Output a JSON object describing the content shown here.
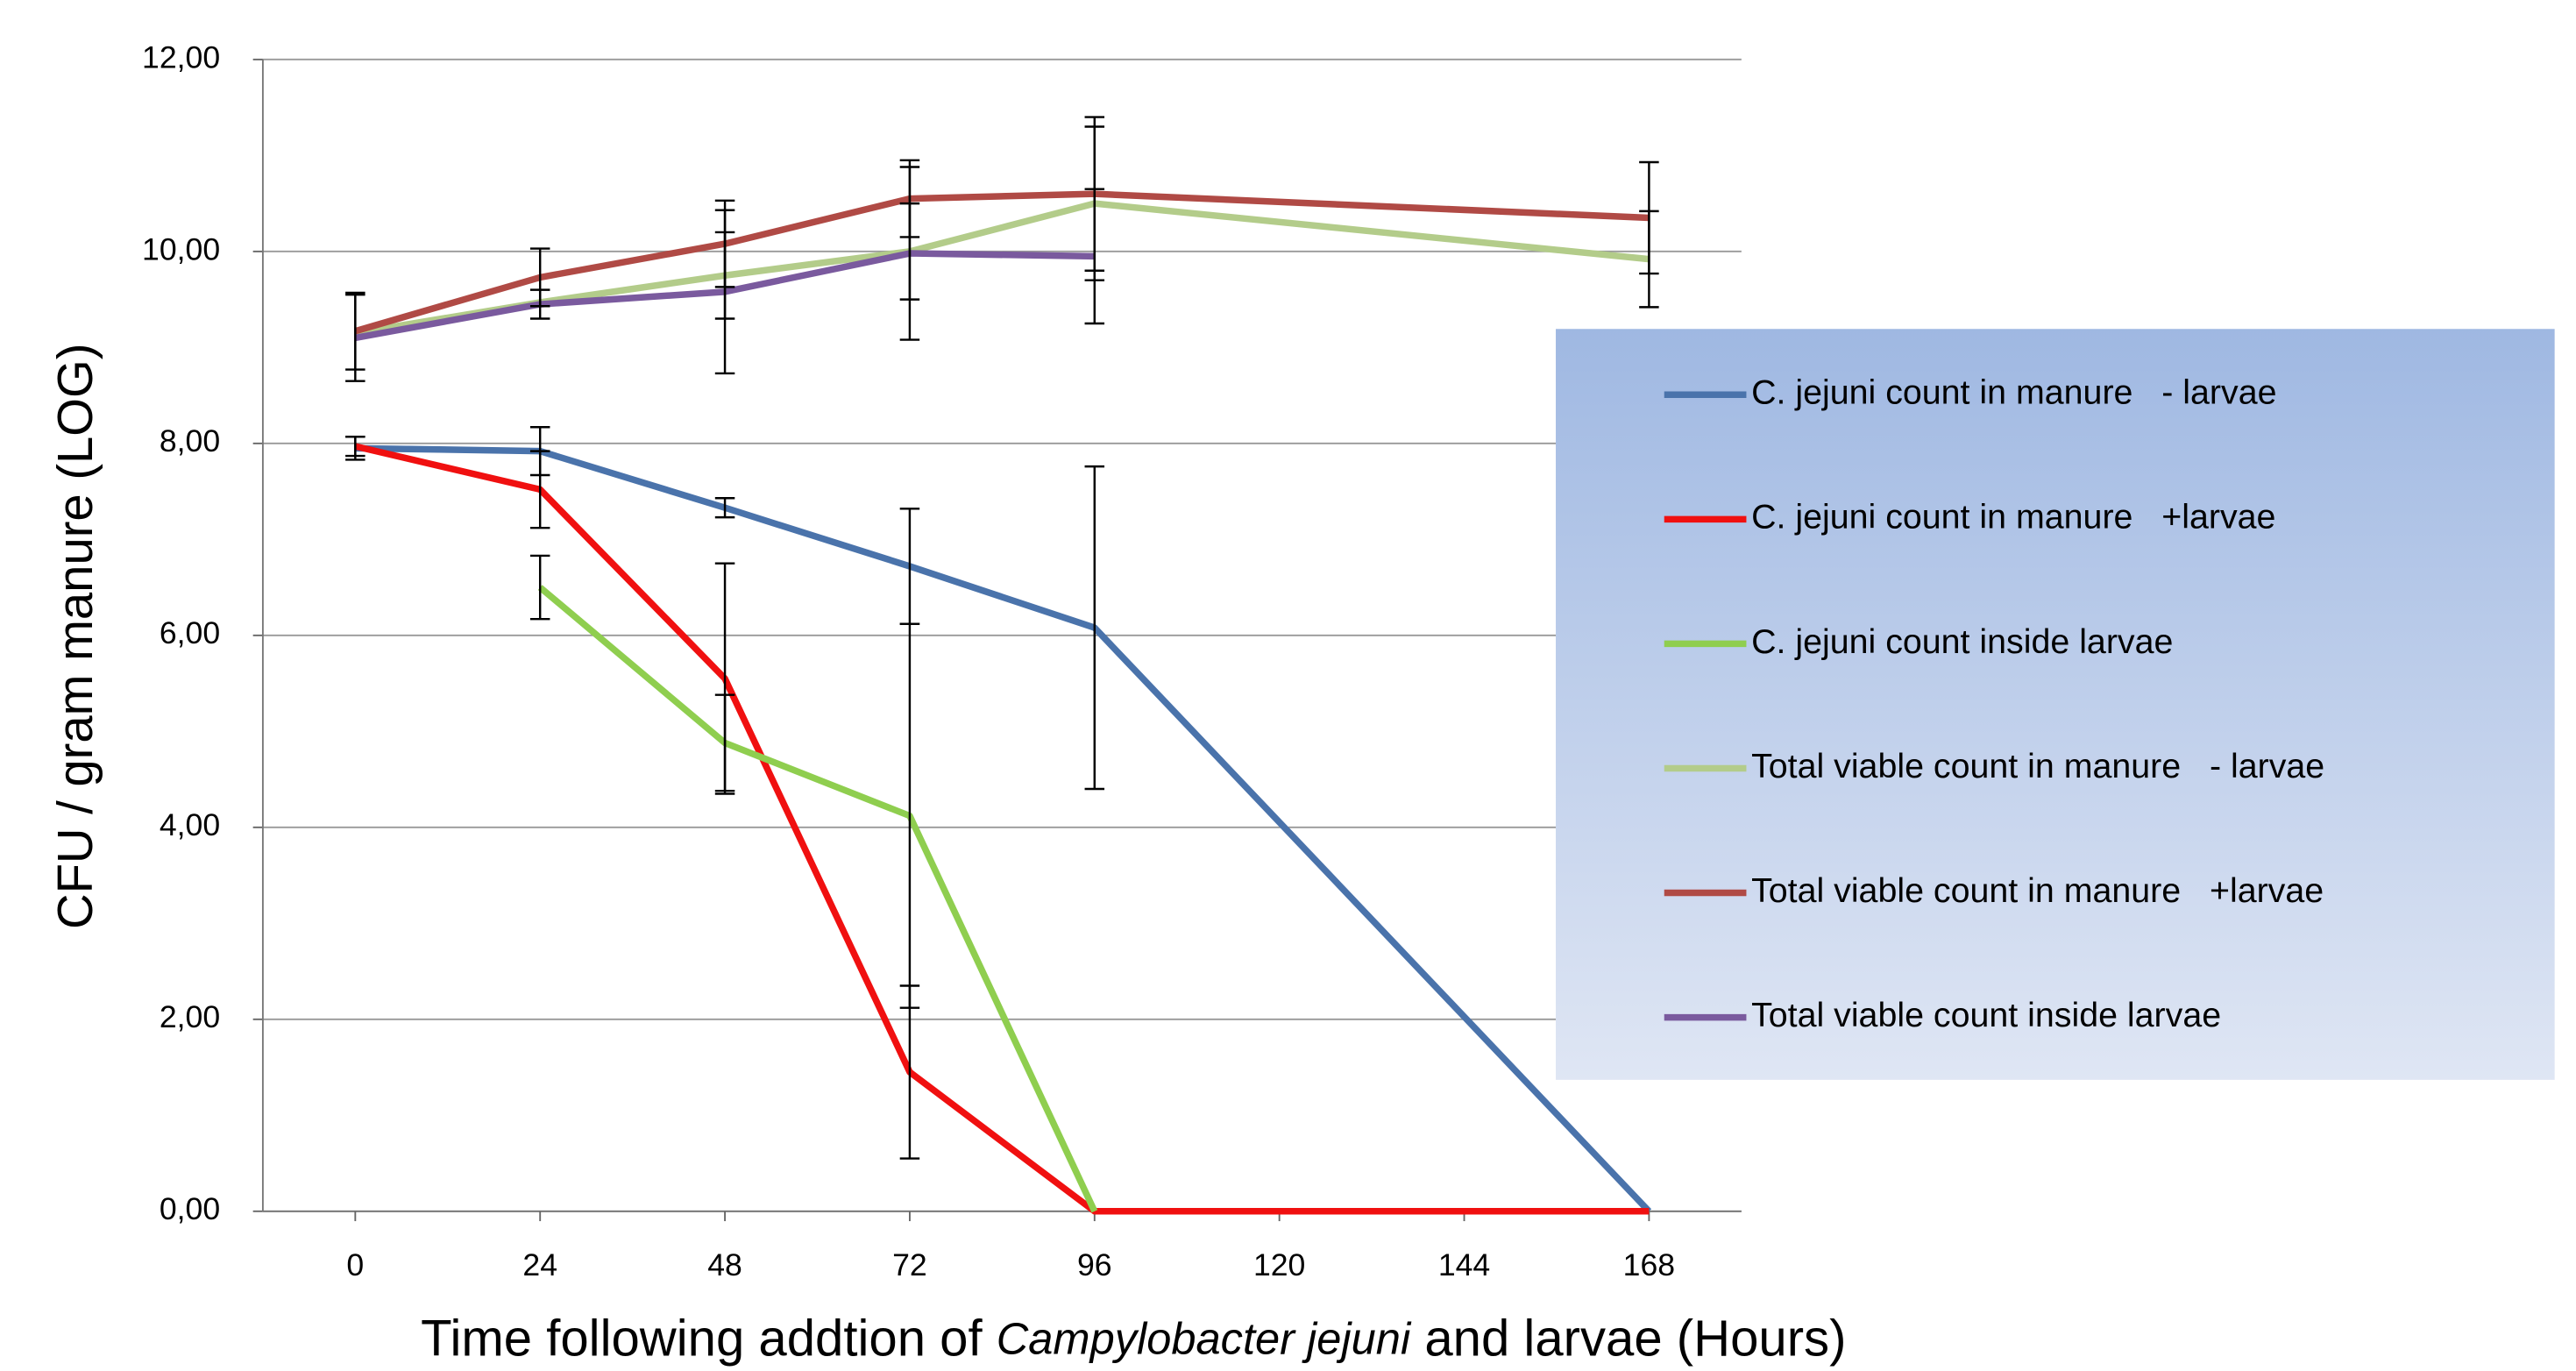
{
  "chart_data": {
    "type": "line",
    "ylabel": "CFU / gram manure (LOG)",
    "xlabel": {
      "before": "Time following addtion of",
      "italic": "Campylobacter jejuni",
      "after": "and larvae (Hours)"
    },
    "x": [
      0,
      24,
      48,
      72,
      96,
      168
    ],
    "xlim": [
      -12,
      180
    ],
    "xticks": [
      0,
      24,
      48,
      72,
      96,
      120,
      144,
      168
    ],
    "ylim": [
      0,
      12
    ],
    "yticks": [
      {
        "value": 0,
        "label": "0,00"
      },
      {
        "value": 2,
        "label": "2,00"
      },
      {
        "value": 4,
        "label": "4,00"
      },
      {
        "value": 6,
        "label": "6,00"
      },
      {
        "value": 8,
        "label": "8,00"
      },
      {
        "value": 10,
        "label": "10,00"
      },
      {
        "value": 12,
        "label": "12,00"
      }
    ],
    "grid": true,
    "legend": "right",
    "series": [
      {
        "name": "C. jejuni count in manure   - larvae",
        "color": "#4a73ab",
        "values": [
          7.95,
          7.92,
          7.33,
          6.72,
          6.08,
          0
        ],
        "errors": [
          0.12,
          0.25,
          0.1,
          0.6,
          1.68,
          null
        ]
      },
      {
        "name": "C. jejuni count in manure   +larvae",
        "color": "#f01010",
        "values": [
          7.97,
          7.52,
          5.55,
          1.45,
          0,
          0
        ],
        "errors": [
          0.1,
          0.4,
          1.2,
          0.9,
          null,
          null
        ]
      },
      {
        "name": "C. jejuni count inside larvae",
        "color": "#8fce4f",
        "values": [
          null,
          6.5,
          4.88,
          4.12,
          0,
          null
        ],
        "errors": [
          null,
          0.33,
          0.5,
          2.0,
          null,
          null
        ]
      },
      {
        "name": "Total viable count in manure   - larvae",
        "color": "#b3cc8a",
        "values": [
          9.15,
          9.47,
          9.75,
          10.0,
          10.5,
          9.92
        ],
        "errors": [
          null,
          null,
          0.45,
          0.5,
          0.8,
          0.5
        ]
      },
      {
        "name": "Total viable count in manure   +larvae",
        "color": "#b04a45",
        "values": [
          9.17,
          9.73,
          10.08,
          10.55,
          10.6,
          10.35
        ],
        "errors": [
          0.4,
          0.3,
          0.45,
          0.4,
          0.8,
          0.58
        ]
      },
      {
        "name": "Total viable count inside larvae",
        "color": "#7a5a9e",
        "values": [
          9.1,
          9.45,
          9.58,
          9.98,
          9.95,
          null
        ],
        "errors": [
          0.45,
          0.15,
          0.85,
          0.9,
          0.7,
          null
        ]
      }
    ]
  }
}
